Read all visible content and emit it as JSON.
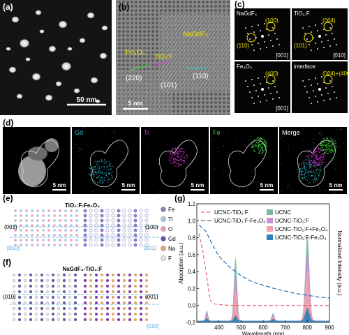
{
  "panel_labels": {
    "a": "(a)",
    "b": "(b)",
    "c": "(c)",
    "d": "(d)",
    "e": "(e)",
    "f": "(f)",
    "g": "(g)"
  },
  "a": {
    "scale_bar": "50 nm"
  },
  "b": {
    "scale_bar": "5 nm",
    "phase_fe3o4": "Fe₃O₄",
    "phase_tio2f": "TiO₂:F",
    "phase_nagdf4": "NaGdF₄",
    "plane_220": "(220)",
    "plane_101": "(101)",
    "plane_110": "(110)"
  },
  "c": {
    "tiles": [
      {
        "title": "NaGdF₄",
        "spot1": "(100)",
        "spot2": "(110)",
        "zone": ""
      },
      {
        "title": "TiO₂:F",
        "spot1": "(004)",
        "spot2": "(101)",
        "zone": "[010]"
      },
      {
        "title": "Fe₃O₄",
        "spot1": "(400)",
        "spot2": "",
        "zone": "[001]"
      },
      {
        "title": "interface",
        "spot1": "(004)+(400)",
        "spot2": "",
        "zone": ""
      }
    ],
    "zone_nagdf4": "[001]"
  },
  "d": {
    "tiles": [
      {
        "label": "",
        "scale": "5 nm",
        "color": "#ffffff"
      },
      {
        "label": "Gd",
        "scale": "5 nm",
        "color": "#2ec4d6"
      },
      {
        "label": "Ti",
        "scale": "5 nm",
        "color": "#d63ad6"
      },
      {
        "label": "Fe",
        "scale": "5 nm",
        "color": "#3ad63a"
      },
      {
        "label": "Merge",
        "scale": "5 nm",
        "color": "#ffffff"
      }
    ]
  },
  "e": {
    "title": "TiO₂:F-Fe₃O₄",
    "left_plane": "(001)",
    "right_plane": "(100)",
    "left_zone": "[010]",
    "right_zone": "[001]",
    "legend": [
      {
        "name": "Fe",
        "color": "#8a7fc0"
      },
      {
        "name": "Ti",
        "color": "#9fc7e6"
      },
      {
        "name": "O",
        "color": "#e8a0b4"
      },
      {
        "name": "Gd",
        "color": "#5b58a8"
      },
      {
        "name": "Na",
        "color": "#e0a868"
      },
      {
        "name": "F",
        "color": "#e6e0f0"
      }
    ]
  },
  "f": {
    "title": "NaGdF₄-TiO₂:F",
    "left_plane": "(010)",
    "right_plane": "(001)",
    "zone": "[010]"
  },
  "chart_data": {
    "type": "line",
    "xlabel": "Wavelength (nm)",
    "ylabel": "Absorption (a.u.)",
    "y2label": "Normalized Intensity (a.u.)",
    "xlim": [
      300,
      900
    ],
    "ylim": [
      -0.2,
      1.2
    ],
    "x_ticks": [
      400,
      500,
      600,
      700,
      800,
      900
    ],
    "y_ticks": [
      -0.2,
      0.0,
      0.2,
      0.4,
      0.6,
      0.8,
      1.0,
      1.2
    ],
    "legend_position": "top",
    "absorption_series": [
      {
        "name": "UCNC-TiO₂:F",
        "color": "#e8607a",
        "dash": "5,3",
        "x": [
          310,
          330,
          350,
          360,
          370,
          380,
          400,
          450,
          500,
          600,
          700,
          800,
          900
        ],
        "y": [
          0.85,
          0.6,
          0.25,
          0.07,
          0.03,
          0.02,
          0.01,
          0.0,
          0.0,
          0.0,
          0.0,
          0.0,
          0.0
        ]
      },
      {
        "name": "UCNC-TiO₂:F-Fe₃O₄",
        "color": "#2a6fb0",
        "dash": "6,3",
        "x": [
          310,
          340,
          370,
          400,
          450,
          500,
          550,
          600,
          650,
          700,
          750,
          800,
          850,
          900
        ],
        "y": [
          0.95,
          0.88,
          0.72,
          0.58,
          0.45,
          0.35,
          0.28,
          0.24,
          0.2,
          0.17,
          0.14,
          0.12,
          0.1,
          0.09
        ]
      }
    ],
    "emission_series": [
      {
        "name": "UCNC",
        "color": "#79b8a6"
      },
      {
        "name": "UCNC-TiO₂:F",
        "color": "#c590d8"
      },
      {
        "name": "UCNC-TiO₂:F+Fe₃O₄",
        "color": "#f2a2aa"
      },
      {
        "name": "UCNC-TiO₂:F-Fe₃O₄",
        "color": "#2f7fb8"
      }
    ],
    "emission_peaks": [
      {
        "center": 345,
        "width": 8,
        "heights": [
          0.12,
          0.1,
          0.07,
          0.03
        ]
      },
      {
        "center": 475,
        "width": 10,
        "heights": [
          0.75,
          0.55,
          0.38,
          0.06
        ]
      },
      {
        "center": 645,
        "width": 9,
        "heights": [
          0.09,
          0.07,
          0.05,
          0.02
        ]
      },
      {
        "center": 800,
        "width": 13,
        "heights": [
          1.0,
          0.82,
          0.6,
          0.15
        ]
      }
    ]
  }
}
